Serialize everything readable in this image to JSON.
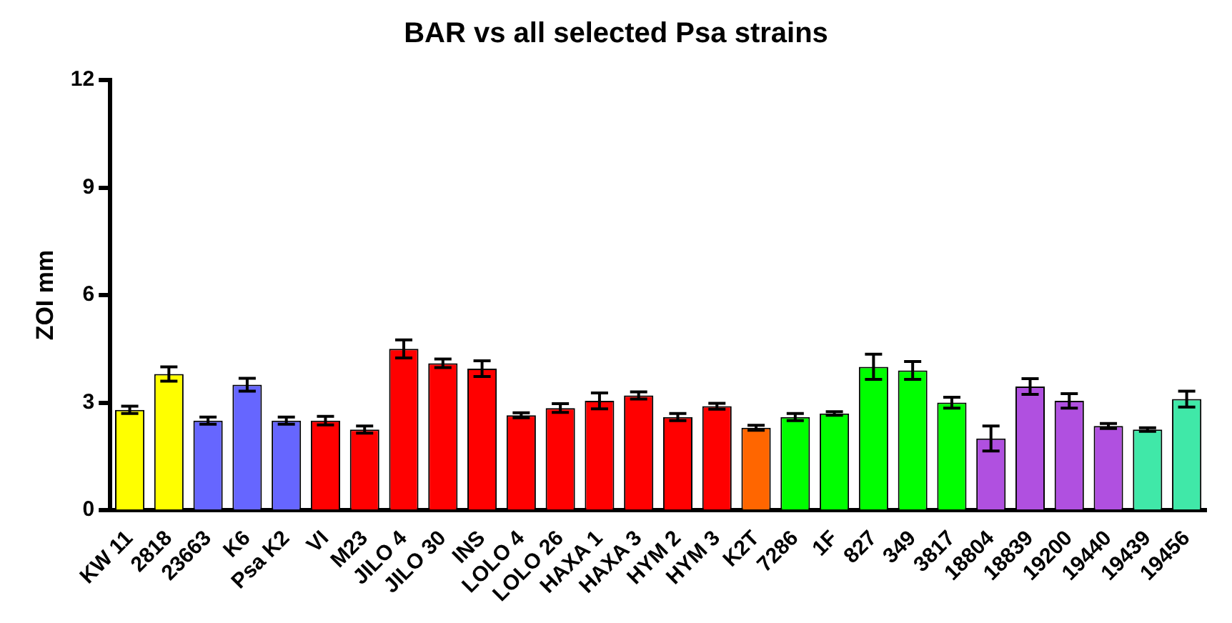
{
  "chart_data": {
    "type": "bar",
    "title": "BAR vs all selected Psa strains",
    "ylabel": "ZOI mm",
    "categories": [
      "KW 11",
      "2818",
      "23663",
      "K6",
      "Psa K2",
      "VI",
      "M23",
      "JILO 4",
      "JILO 30",
      "INS",
      "LOLO 4",
      "LOLO 26",
      "HAXA 1",
      "HAXA 3",
      "HYM 2",
      "HYM 3",
      "K2T",
      "7286",
      "1F",
      "827",
      "349",
      "3817",
      "18804",
      "18839",
      "19200",
      "19440",
      "19439",
      "19456"
    ],
    "values": [
      2.8,
      3.8,
      2.5,
      3.5,
      2.5,
      2.5,
      2.25,
      4.5,
      4.1,
      3.95,
      2.65,
      2.85,
      3.05,
      3.2,
      2.6,
      2.9,
      2.3,
      2.6,
      2.7,
      4.0,
      3.9,
      3.0,
      2.0,
      3.45,
      3.05,
      2.35,
      2.25,
      3.1
    ],
    "errors": [
      0.1,
      0.2,
      0.1,
      0.18,
      0.1,
      0.12,
      0.1,
      0.25,
      0.12,
      0.22,
      0.07,
      0.12,
      0.22,
      0.1,
      0.1,
      0.08,
      0.07,
      0.1,
      0.05,
      0.35,
      0.25,
      0.15,
      0.35,
      0.22,
      0.2,
      0.07,
      0.05,
      0.22
    ],
    "colors": [
      "#ffff00",
      "#ffff00",
      "#6666ff",
      "#6666ff",
      "#6666ff",
      "#ff0000",
      "#ff0000",
      "#ff0000",
      "#ff0000",
      "#ff0000",
      "#ff0000",
      "#ff0000",
      "#ff0000",
      "#ff0000",
      "#ff0000",
      "#ff0000",
      "#ff6600",
      "#00ff00",
      "#00ff00",
      "#00ff00",
      "#00ff00",
      "#00ff00",
      "#b050e0",
      "#b050e0",
      "#b050e0",
      "#b050e0",
      "#40e8a8",
      "#40e8a8"
    ],
    "ylim": [
      0,
      12
    ],
    "yticks": [
      0,
      3,
      6,
      9,
      12
    ],
    "grid": false,
    "legend": false
  }
}
